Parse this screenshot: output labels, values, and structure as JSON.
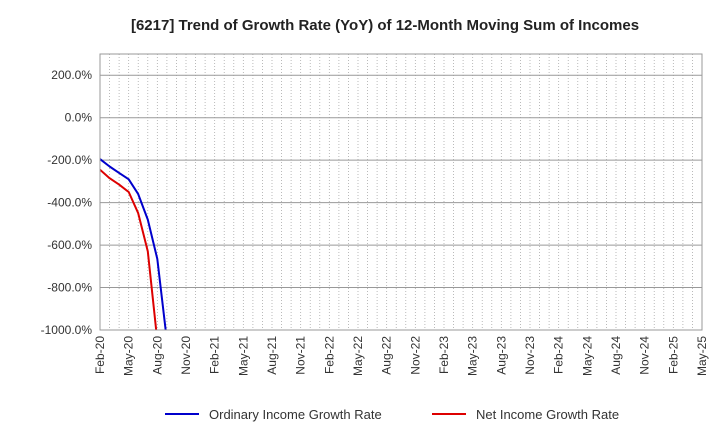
{
  "chart_data": {
    "type": "line",
    "title": "[6217]  Trend of Growth Rate (YoY) of 12-Month Moving Sum of Incomes",
    "xlabel": "",
    "ylabel": "",
    "ylim": [
      -1000,
      300
    ],
    "yticks": [
      200,
      0,
      -200,
      -400,
      -600,
      -800,
      -1000
    ],
    "ytick_labels": [
      "200.0%",
      "0.0%",
      "-200.0%",
      "-400.0%",
      "-600.0%",
      "-800.0%",
      "-1000.0%"
    ],
    "xlim": [
      "2020-02",
      "2025-05"
    ],
    "xtick_labels": [
      "Feb-20",
      "May-20",
      "Aug-20",
      "Nov-20",
      "Feb-21",
      "May-21",
      "Aug-21",
      "Nov-21",
      "Feb-22",
      "May-22",
      "Aug-22",
      "Nov-22",
      "Feb-23",
      "May-23",
      "Aug-23",
      "Nov-23",
      "Feb-24",
      "May-24",
      "Aug-24",
      "Nov-24",
      "Feb-25",
      "May-25"
    ],
    "grid": true,
    "legend_position": "bottom",
    "series": [
      {
        "name": "Ordinary Income Growth Rate",
        "color": "#0000cc",
        "x": [
          "2020-02",
          "2020-03",
          "2020-04",
          "2020-05",
          "2020-06",
          "2020-07",
          "2020-08",
          "2020-09"
        ],
        "y": [
          -195,
          -230,
          -260,
          -290,
          -360,
          -480,
          -665,
          -1050
        ]
      },
      {
        "name": "Net Income Growth Rate",
        "color": "#dd0000",
        "x": [
          "2020-02",
          "2020-03",
          "2020-04",
          "2020-05",
          "2020-06",
          "2020-07",
          "2020-08"
        ],
        "y": [
          -245,
          -285,
          -315,
          -350,
          -450,
          -630,
          -1050
        ]
      }
    ]
  }
}
